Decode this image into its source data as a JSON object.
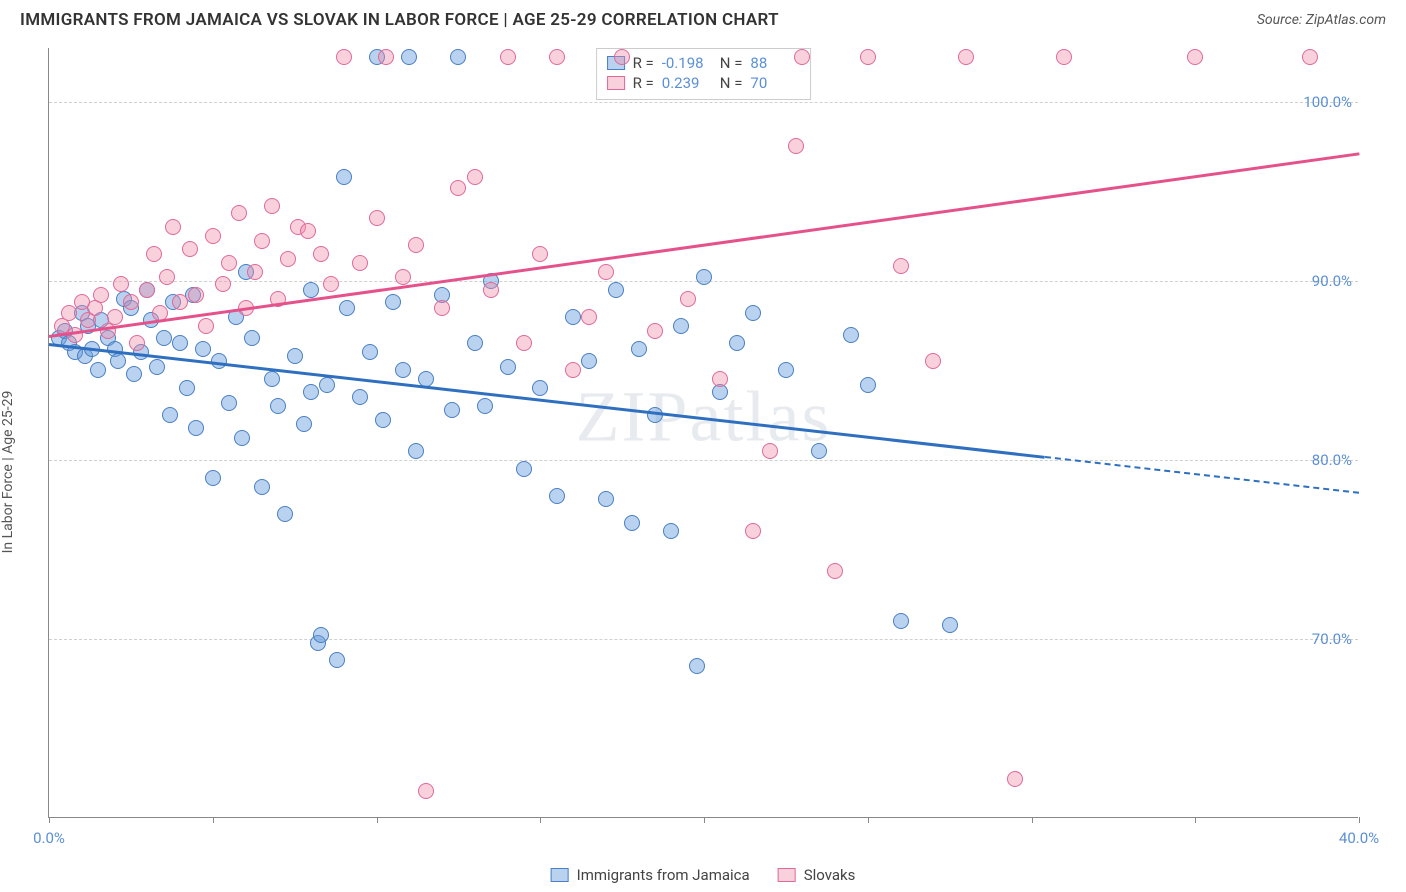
{
  "header": {
    "title": "IMMIGRANTS FROM JAMAICA VS SLOVAK IN LABOR FORCE | AGE 25-29 CORRELATION CHART",
    "source": "Source: ZipAtlas.com"
  },
  "y_axis_label": "In Labor Force | Age 25-29",
  "watermark": "ZIPatlas",
  "chart": {
    "type": "scatter-with-regression",
    "xlim": [
      0,
      40
    ],
    "ylim": [
      60,
      103
    ],
    "x_ticks": [
      0,
      40
    ],
    "x_tick_labels": [
      "0.0%",
      "40.0%"
    ],
    "x_tick_marks": [
      0,
      5,
      10,
      15,
      20,
      25,
      30,
      35,
      40
    ],
    "y_ticks": [
      70,
      80,
      90,
      100
    ],
    "y_tick_labels": [
      "70.0%",
      "80.0%",
      "90.0%",
      "100.0%"
    ],
    "grid_color": "#d0d0d0",
    "background_color": "#ffffff",
    "dot_radius": 8,
    "series": [
      {
        "name": "Immigrants from Jamaica",
        "fill": "rgba(100,155,220,0.45)",
        "stroke": "#4a7fc5",
        "line_color": "#2e6fc0",
        "R": "-0.198",
        "N": "88",
        "regression": {
          "x1": 0,
          "y1": 86.5,
          "x2": 30.4,
          "y2": 80.2,
          "dash_to_x": 40,
          "dash_to_y": 78.2
        },
        "points": [
          [
            0.3,
            86.8
          ],
          [
            0.5,
            87.2
          ],
          [
            0.6,
            86.5
          ],
          [
            0.8,
            86.0
          ],
          [
            1.0,
            88.2
          ],
          [
            1.1,
            85.8
          ],
          [
            1.2,
            87.5
          ],
          [
            1.3,
            86.2
          ],
          [
            1.5,
            85.0
          ],
          [
            1.6,
            87.8
          ],
          [
            1.8,
            86.8
          ],
          [
            2.0,
            86.2
          ],
          [
            2.1,
            85.5
          ],
          [
            2.3,
            89.0
          ],
          [
            2.5,
            88.5
          ],
          [
            2.6,
            84.8
          ],
          [
            2.8,
            86.0
          ],
          [
            3.0,
            89.5
          ],
          [
            3.1,
            87.8
          ],
          [
            3.3,
            85.2
          ],
          [
            3.5,
            86.8
          ],
          [
            3.7,
            82.5
          ],
          [
            3.8,
            88.8
          ],
          [
            4.0,
            86.5
          ],
          [
            4.2,
            84.0
          ],
          [
            4.4,
            89.2
          ],
          [
            4.5,
            81.8
          ],
          [
            4.7,
            86.2
          ],
          [
            5.0,
            79.0
          ],
          [
            5.2,
            85.5
          ],
          [
            5.5,
            83.2
          ],
          [
            5.7,
            88.0
          ],
          [
            5.9,
            81.2
          ],
          [
            6.0,
            90.5
          ],
          [
            6.2,
            86.8
          ],
          [
            6.5,
            78.5
          ],
          [
            6.8,
            84.5
          ],
          [
            7.0,
            83.0
          ],
          [
            7.2,
            77.0
          ],
          [
            7.5,
            85.8
          ],
          [
            7.8,
            82.0
          ],
          [
            8.0,
            89.5
          ],
          [
            8.2,
            69.8
          ],
          [
            8.3,
            70.2
          ],
          [
            8.5,
            84.2
          ],
          [
            8.8,
            68.8
          ],
          [
            9.0,
            95.8
          ],
          [
            9.1,
            88.5
          ],
          [
            9.5,
            83.5
          ],
          [
            9.8,
            86.0
          ],
          [
            10.0,
            102.5
          ],
          [
            10.2,
            82.2
          ],
          [
            10.5,
            88.8
          ],
          [
            10.8,
            85.0
          ],
          [
            11.0,
            102.5
          ],
          [
            11.2,
            80.5
          ],
          [
            11.5,
            84.5
          ],
          [
            12.0,
            89.2
          ],
          [
            12.3,
            82.8
          ],
          [
            12.5,
            102.5
          ],
          [
            13.0,
            86.5
          ],
          [
            13.3,
            83.0
          ],
          [
            13.5,
            90.0
          ],
          [
            14.0,
            85.2
          ],
          [
            14.5,
            79.5
          ],
          [
            15.0,
            84.0
          ],
          [
            15.5,
            78.0
          ],
          [
            16.0,
            88.0
          ],
          [
            16.5,
            85.5
          ],
          [
            17.0,
            77.8
          ],
          [
            17.3,
            89.5
          ],
          [
            17.8,
            76.5
          ],
          [
            18.0,
            86.2
          ],
          [
            18.5,
            82.5
          ],
          [
            19.0,
            76.0
          ],
          [
            19.3,
            87.5
          ],
          [
            19.8,
            68.5
          ],
          [
            20.0,
            90.2
          ],
          [
            20.5,
            83.8
          ],
          [
            21.0,
            86.5
          ],
          [
            21.5,
            88.2
          ],
          [
            22.5,
            85.0
          ],
          [
            23.5,
            80.5
          ],
          [
            24.5,
            87.0
          ],
          [
            25.0,
            84.2
          ],
          [
            26.0,
            71.0
          ],
          [
            27.5,
            70.8
          ],
          [
            8.0,
            83.8
          ]
        ]
      },
      {
        "name": "Slovaks",
        "fill": "rgba(240,140,170,0.40)",
        "stroke": "#e06999",
        "line_color": "#e5518b",
        "R": "0.239",
        "N": "70",
        "regression": {
          "x1": 0,
          "y1": 87.0,
          "x2": 40,
          "y2": 97.2
        },
        "points": [
          [
            0.4,
            87.5
          ],
          [
            0.6,
            88.2
          ],
          [
            0.8,
            87.0
          ],
          [
            1.0,
            88.8
          ],
          [
            1.2,
            87.8
          ],
          [
            1.4,
            88.5
          ],
          [
            1.6,
            89.2
          ],
          [
            1.8,
            87.2
          ],
          [
            2.0,
            88.0
          ],
          [
            2.2,
            89.8
          ],
          [
            2.5,
            88.8
          ],
          [
            2.7,
            86.5
          ],
          [
            3.0,
            89.5
          ],
          [
            3.2,
            91.5
          ],
          [
            3.4,
            88.2
          ],
          [
            3.6,
            90.2
          ],
          [
            3.8,
            93.0
          ],
          [
            4.0,
            88.8
          ],
          [
            4.3,
            91.8
          ],
          [
            4.5,
            89.2
          ],
          [
            4.8,
            87.5
          ],
          [
            5.0,
            92.5
          ],
          [
            5.3,
            89.8
          ],
          [
            5.5,
            91.0
          ],
          [
            5.8,
            93.8
          ],
          [
            6.0,
            88.5
          ],
          [
            6.3,
            90.5
          ],
          [
            6.5,
            92.2
          ],
          [
            6.8,
            94.2
          ],
          [
            7.0,
            89.0
          ],
          [
            7.3,
            91.2
          ],
          [
            7.6,
            93.0
          ],
          [
            7.9,
            92.8
          ],
          [
            8.3,
            91.5
          ],
          [
            8.6,
            89.8
          ],
          [
            9.0,
            102.5
          ],
          [
            9.5,
            91.0
          ],
          [
            10.0,
            93.5
          ],
          [
            10.3,
            102.5
          ],
          [
            10.8,
            90.2
          ],
          [
            11.2,
            92.0
          ],
          [
            11.5,
            61.5
          ],
          [
            12.0,
            88.5
          ],
          [
            12.5,
            95.2
          ],
          [
            13.0,
            95.8
          ],
          [
            13.5,
            89.5
          ],
          [
            14.0,
            102.5
          ],
          [
            14.5,
            86.5
          ],
          [
            15.0,
            91.5
          ],
          [
            15.5,
            102.5
          ],
          [
            16.0,
            85.0
          ],
          [
            16.5,
            88.0
          ],
          [
            17.0,
            90.5
          ],
          [
            17.5,
            102.5
          ],
          [
            18.5,
            87.2
          ],
          [
            19.5,
            89.0
          ],
          [
            20.5,
            84.5
          ],
          [
            21.5,
            76.0
          ],
          [
            22.0,
            80.5
          ],
          [
            22.8,
            97.5
          ],
          [
            23.0,
            102.5
          ],
          [
            24.0,
            73.8
          ],
          [
            25.0,
            102.5
          ],
          [
            26.0,
            90.8
          ],
          [
            27.0,
            85.5
          ],
          [
            28.0,
            102.5
          ],
          [
            29.5,
            62.2
          ],
          [
            31.0,
            102.5
          ],
          [
            35.0,
            102.5
          ],
          [
            38.5,
            102.5
          ]
        ]
      }
    ]
  },
  "stats_box": {
    "rows": [
      {
        "swatch_fill": "rgba(100,155,220,0.45)",
        "swatch_stroke": "#4a7fc5",
        "R": "-0.198",
        "N": "88"
      },
      {
        "swatch_fill": "rgba(240,140,170,0.40)",
        "swatch_stroke": "#e06999",
        "R": "0.239",
        "N": "70"
      }
    ],
    "R_label": "R =",
    "N_label": "N ="
  },
  "legend": [
    {
      "label": "Immigrants from Jamaica",
      "fill": "rgba(100,155,220,0.45)",
      "stroke": "#4a7fc5"
    },
    {
      "label": "Slovaks",
      "fill": "rgba(240,140,170,0.40)",
      "stroke": "#e06999"
    }
  ]
}
